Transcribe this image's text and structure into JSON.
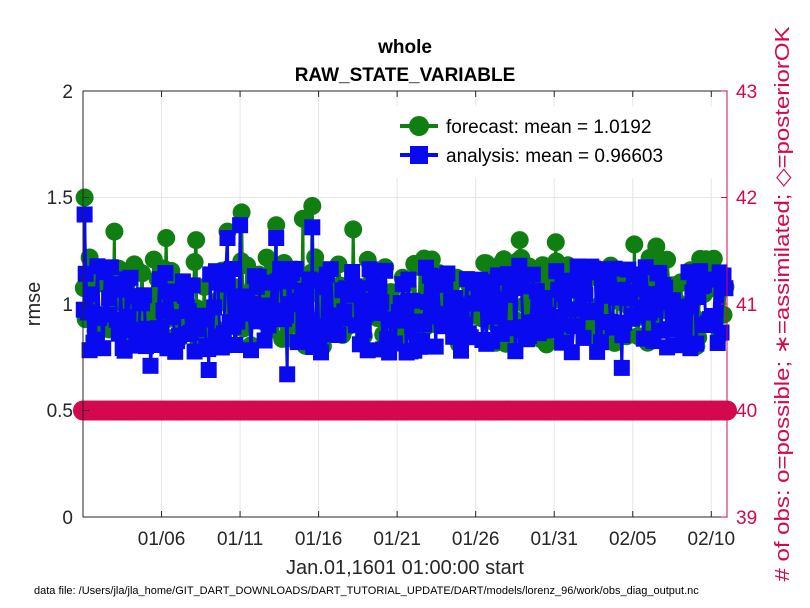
{
  "chart_data": {
    "type": "line",
    "title": "whole",
    "subtitle": "RAW_STATE_VARIABLE",
    "xlabel": "Jan.01,1601 01:00:00 start",
    "ylabel": "rmse",
    "y2label": "# of obs: o=possible; ∗=assimilated; ◇=posteriorOK",
    "footnote": "data file: /Users/jla/jla_home/GIT_DART_DOWNLOADS/DART_TUTORIAL_UPDATE/DART/models/lorenz_96/work/obs_diag_output.nc",
    "xlim": [
      1,
      42
    ],
    "ylim": [
      0,
      2
    ],
    "y2lim": [
      39,
      43
    ],
    "x_ticks": [
      {
        "x": 6,
        "label": "01/06"
      },
      {
        "x": 11,
        "label": "01/11"
      },
      {
        "x": 16,
        "label": "01/16"
      },
      {
        "x": 21,
        "label": "01/21"
      },
      {
        "x": 26,
        "label": "01/26"
      },
      {
        "x": 31,
        "label": "01/31"
      },
      {
        "x": 36,
        "label": "02/05"
      },
      {
        "x": 41,
        "label": "02/10"
      }
    ],
    "y_ticks": [
      "0",
      "0.5",
      "1",
      "1.5",
      "2"
    ],
    "y2_ticks": [
      "39",
      "40",
      "41",
      "42",
      "43"
    ],
    "grid": true,
    "legend_position": "top-right",
    "colors": {
      "forecast": "#0f7f12",
      "analysis": "#0a0af0",
      "obs_count": "#d4084e"
    },
    "series": [
      {
        "name": "forecast: mean = 1.0192",
        "axis": "left",
        "peaks": [
          [
            1.1,
            1.5
          ],
          [
            3.0,
            1.34
          ],
          [
            6.3,
            1.31
          ],
          [
            8.2,
            1.3
          ],
          [
            10.2,
            1.34
          ],
          [
            11.1,
            1.43
          ],
          [
            13.3,
            1.37
          ],
          [
            15.0,
            1.4
          ],
          [
            15.6,
            1.46
          ],
          [
            18.2,
            1.35
          ],
          [
            28.8,
            1.3
          ],
          [
            31.1,
            1.29
          ],
          [
            36.1,
            1.28
          ],
          [
            37.5,
            1.27
          ]
        ],
        "band": [
          0.8,
          1.22
        ]
      },
      {
        "name": "analysis: mean = 0.96603",
        "axis": "left",
        "peaks": [
          [
            1.1,
            1.42
          ],
          [
            10.2,
            1.31
          ],
          [
            11.0,
            1.37
          ],
          [
            13.3,
            1.31
          ],
          [
            15.6,
            1.36
          ]
        ],
        "troughs": [
          [
            5.3,
            0.71
          ],
          [
            9.0,
            0.69
          ],
          [
            14.0,
            0.67
          ],
          [
            35.3,
            0.7
          ]
        ],
        "band": [
          0.77,
          1.18
        ]
      },
      {
        "name": "obs count",
        "axis": "right",
        "constant": 40
      }
    ]
  }
}
